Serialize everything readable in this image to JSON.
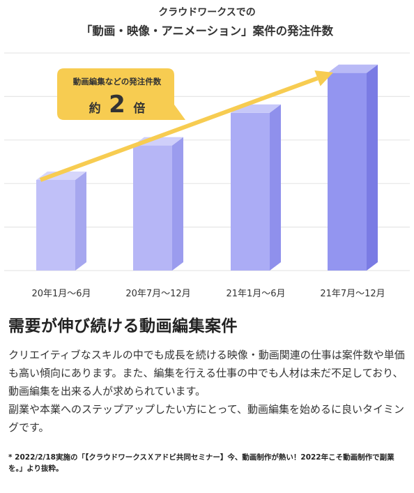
{
  "chart_data": {
    "type": "bar",
    "title": "クラウドワークスでの",
    "subtitle": "「動画・映像・アニメーション」案件の発注件数",
    "categories": [
      "20年1月～6月",
      "20年7月～12月",
      "21年1月～6月",
      "21年7月～12月"
    ],
    "values": [
      1.0,
      1.38,
      1.74,
      2.18
    ],
    "ylim": [
      0,
      2.6
    ],
    "grid": true,
    "callout": {
      "line1": "動画編集などの発注件数",
      "prefix": "約",
      "number": "2",
      "suffix": "倍"
    },
    "colors": {
      "bar_front": [
        "#c0c0f8",
        "#b6b6f6",
        "#abacf5",
        "#9395f0"
      ],
      "bar_side": [
        "#a6a7ef",
        "#9b9cee",
        "#8f90ec",
        "#7a7be4"
      ],
      "bar_top": [
        "#d6d6fb",
        "#cfcffa",
        "#c7c8f9",
        "#b9baf6"
      ],
      "arrow": "#f7cc51",
      "callout": "#f7cc51",
      "grid": "#e6e6e6"
    }
  },
  "headline": "需要が伸び続ける動画編集案件",
  "paragraphs": [
    "クリエイティブなスキルの中でも成長を続ける映像・動画関連の仕事は案件数や単価も高い傾向にあります。また、編集を行える仕事の中でも人材は未だ不足しており、動画編集を出来る人が求められています。",
    "副業や本業へのステップアップしたい方にとって、動画編集を始めるに良いタイミングです。"
  ],
  "footnote": "* 2022/2/18実施の「【クラウドワークスＸアドビ共同セミナー】今、動画制作が熱い！2022年こそ動画制作で副業を。」より抜粋。"
}
